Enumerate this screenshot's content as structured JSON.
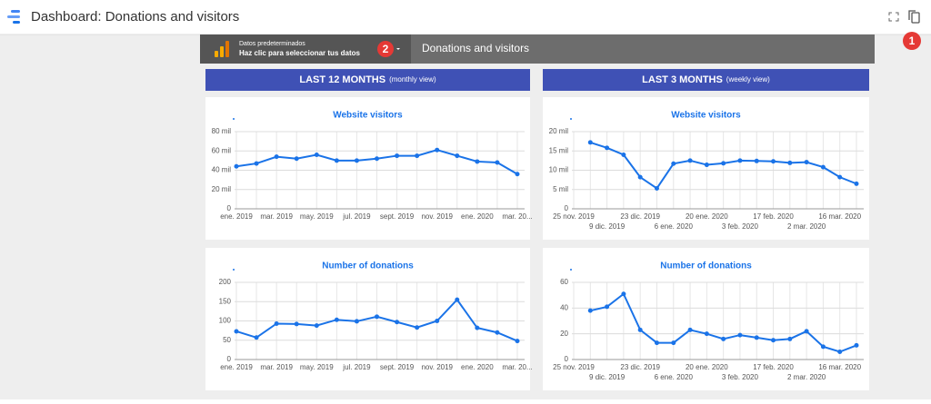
{
  "header": {
    "title": "Dashboard: Donations and visitors"
  },
  "toolbar": {
    "source_title": "Datos predeterminados",
    "source_hint": "Haz clic para seleccionar tus datos",
    "report_name": "Donations and visitors"
  },
  "badges": [
    "1",
    "2"
  ],
  "sections": [
    {
      "title": "LAST 12 MONTHS",
      "note": "(monthly view)"
    },
    {
      "title": "LAST 3 MONTHS",
      "note": "(weekly view)"
    }
  ],
  "chart_data": [
    {
      "type": "line",
      "title": "Website visitors",
      "color": "#1a73e8",
      "grid": true,
      "categories": [
        "ene. 2019",
        null,
        "mar. 2019",
        null,
        "may. 2019",
        null,
        "jul. 2019",
        null,
        "sept. 2019",
        null,
        "nov. 2019",
        null,
        "ene. 2020",
        null,
        "mar. 20..."
      ],
      "values": [
        44,
        47,
        54,
        52,
        56,
        50,
        50,
        52,
        55,
        55,
        61,
        55,
        49,
        48,
        36
      ],
      "ylim": [
        0,
        80
      ],
      "yticks": [
        0,
        {
          "value": 20,
          "label": "20 mil"
        },
        {
          "value": 40,
          "label": "40 mil"
        },
        {
          "value": 60,
          "label": "60 mil"
        },
        {
          "value": 80,
          "label": "80 mil"
        }
      ]
    },
    {
      "type": "line",
      "title": "Number of donations",
      "color": "#1a73e8",
      "grid": true,
      "categories": [
        "ene. 2019",
        null,
        "mar. 2019",
        null,
        "may. 2019",
        null,
        "jul. 2019",
        null,
        "sept. 2019",
        null,
        "nov. 2019",
        null,
        "ene. 2020",
        null,
        "mar. 20..."
      ],
      "values": [
        73,
        57,
        93,
        92,
        88,
        103,
        99,
        111,
        97,
        83,
        100,
        155,
        82,
        70,
        48
      ],
      "ylim": [
        0,
        200
      ],
      "yticks": [
        0,
        50,
        100,
        150,
        200
      ]
    },
    {
      "type": "line",
      "title": "Website visitors",
      "color": "#1a73e8",
      "grid": true,
      "categories": [
        "25 nov. 2019",
        null,
        "9 dic. 2019",
        null,
        "23 dic. 2019",
        null,
        "6 ene. 2020",
        null,
        "20 ene. 2020",
        null,
        "3 feb. 2020",
        null,
        "17 feb. 2020",
        null,
        "2 mar. 2020",
        null,
        "16 mar. 2020",
        null
      ],
      "values": [
        null,
        17.2,
        15.8,
        14,
        8.2,
        5.3,
        11.7,
        12.5,
        11.4,
        11.8,
        12.5,
        12.4,
        12.3,
        11.9,
        12.1,
        10.8,
        8.2,
        6.5
      ],
      "ylim": [
        0,
        20
      ],
      "yticks": [
        0,
        {
          "value": 5,
          "label": "5 mil"
        },
        {
          "value": 10,
          "label": "10 mil"
        },
        {
          "value": 15,
          "label": "15 mil"
        },
        {
          "value": 20,
          "label": "20 mil"
        }
      ]
    },
    {
      "type": "line",
      "title": "Number of donations",
      "color": "#1a73e8",
      "grid": true,
      "categories": [
        "25 nov. 2019",
        null,
        "9 dic. 2019",
        null,
        "23 dic. 2019",
        null,
        "6 ene. 2020",
        null,
        "20 ene. 2020",
        null,
        "3 feb. 2020",
        null,
        "17 feb. 2020",
        null,
        "2 mar. 2020",
        null,
        "16 mar. 2020",
        null
      ],
      "values": [
        null,
        38,
        41,
        51,
        23,
        13,
        13,
        23,
        20,
        16,
        19,
        17,
        15,
        16,
        22,
        10,
        6,
        11
      ],
      "ylim": [
        0,
        60
      ],
      "yticks": [
        0,
        20,
        40,
        60
      ]
    }
  ]
}
